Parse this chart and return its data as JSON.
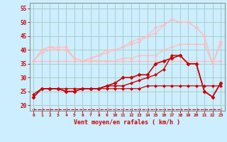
{
  "background_color": "#cceeff",
  "grid_color": "#aacccc",
  "xlabel": "Vent moyen/en rafales ( km/h )",
  "xlabel_color": "#cc0000",
  "tick_color": "#cc0000",
  "xlim": [
    -0.5,
    23.5
  ],
  "ylim": [
    18,
    57
  ],
  "yticks": [
    20,
    25,
    30,
    35,
    40,
    45,
    50,
    55
  ],
  "xticks": [
    0,
    1,
    2,
    3,
    4,
    5,
    6,
    7,
    8,
    9,
    10,
    11,
    12,
    13,
    14,
    15,
    16,
    17,
    18,
    19,
    20,
    21,
    22,
    23
  ],
  "lines": [
    {
      "x": [
        0,
        1,
        2,
        3,
        4,
        5,
        6,
        7,
        8,
        9,
        10,
        11,
        12,
        13,
        14,
        15,
        16,
        17,
        18,
        19,
        20,
        21,
        22,
        23
      ],
      "y": [
        36,
        36,
        36,
        36,
        36,
        36,
        36,
        36,
        36,
        36,
        36,
        36,
        36,
        36,
        36,
        36,
        36,
        36,
        36,
        36,
        36,
        36,
        36,
        36
      ],
      "color": "#ffbbbb",
      "lw": 0.8,
      "marker": "D",
      "ms": 2.0,
      "zorder": 2
    },
    {
      "x": [
        0,
        1,
        2,
        3,
        4,
        5,
        6,
        7,
        8,
        9,
        10,
        11,
        12,
        13,
        14,
        15,
        16,
        17,
        18,
        19,
        20,
        21,
        22,
        23
      ],
      "y": [
        36,
        39,
        40,
        40,
        40,
        37,
        36,
        36,
        36,
        36,
        36,
        37,
        37,
        38,
        38,
        38,
        40,
        41,
        42,
        42,
        42,
        42,
        35,
        42
      ],
      "color": "#ffbbbb",
      "lw": 0.8,
      "marker": "D",
      "ms": 2.0,
      "zorder": 2
    },
    {
      "x": [
        0,
        1,
        2,
        3,
        4,
        5,
        6,
        7,
        8,
        9,
        10,
        11,
        12,
        13,
        14,
        15,
        16,
        17,
        18,
        19,
        20,
        21,
        22,
        23
      ],
      "y": [
        36,
        40,
        41,
        40,
        40,
        37,
        36,
        37,
        38,
        39,
        40,
        41,
        42,
        43,
        45,
        48,
        49,
        51,
        50,
        50,
        48,
        45,
        35,
        43
      ],
      "color": "#ffbbbb",
      "lw": 0.8,
      "marker": "D",
      "ms": 2.0,
      "zorder": 2
    },
    {
      "x": [
        0,
        1,
        2,
        3,
        4,
        5,
        6,
        7,
        8,
        9,
        10,
        11,
        12,
        13,
        14,
        15,
        16,
        17,
        18,
        19,
        20,
        21,
        22,
        23
      ],
      "y": [
        36,
        40,
        41,
        41,
        41,
        37,
        36,
        37,
        38,
        40,
        40,
        41,
        43,
        44,
        45,
        46,
        49,
        51,
        50,
        50,
        48,
        45,
        35,
        43
      ],
      "color": "#ffbbbb",
      "lw": 0.8,
      "marker": "D",
      "ms": 2.0,
      "zorder": 2
    },
    {
      "x": [
        0,
        1,
        2,
        3,
        4,
        5,
        6,
        7,
        8,
        9,
        10,
        11,
        12,
        13,
        14,
        15,
        16,
        17,
        18,
        19,
        20,
        21,
        22,
        23
      ],
      "y": [
        24,
        26,
        26,
        26,
        26,
        26,
        26,
        26,
        26,
        26,
        26,
        26,
        26,
        26,
        27,
        27,
        27,
        27,
        27,
        27,
        27,
        27,
        27,
        27
      ],
      "color": "#cc0000",
      "lw": 0.9,
      "marker": "D",
      "ms": 2.0,
      "zorder": 3
    },
    {
      "x": [
        0,
        1,
        2,
        3,
        4,
        5,
        6,
        7,
        8,
        9,
        10,
        11,
        12,
        13,
        14,
        15,
        16,
        17,
        18,
        19,
        20,
        21,
        22,
        23
      ],
      "y": [
        23,
        26,
        26,
        26,
        25,
        25,
        26,
        26,
        26,
        27,
        27,
        27,
        28,
        29,
        30,
        31,
        33,
        38,
        38,
        35,
        35,
        25,
        23,
        28
      ],
      "color": "#cc0000",
      "lw": 1.0,
      "marker": "D",
      "ms": 2.0,
      "zorder": 3
    },
    {
      "x": [
        0,
        1,
        2,
        3,
        4,
        5,
        6,
        7,
        8,
        9,
        10,
        11,
        12,
        13,
        14,
        15,
        16,
        17,
        18,
        19,
        20,
        21,
        22,
        23
      ],
      "y": [
        23,
        26,
        26,
        26,
        25,
        25,
        26,
        26,
        26,
        27,
        28,
        30,
        30,
        31,
        31,
        35,
        36,
        37,
        38,
        35,
        35,
        25,
        23,
        28
      ],
      "color": "#cc0000",
      "lw": 1.2,
      "marker": "D",
      "ms": 2.5,
      "zorder": 4
    },
    {
      "x": [
        0,
        1,
        2,
        3,
        4,
        5,
        6,
        7,
        8,
        9,
        10,
        11,
        12,
        13,
        14,
        15,
        16,
        17,
        18,
        19,
        20,
        21,
        22,
        23
      ],
      "y": [
        18.5,
        18.5,
        18.5,
        18.5,
        18.5,
        18.5,
        18.5,
        18.5,
        18.5,
        18.5,
        18.5,
        18.5,
        18.5,
        18.5,
        18.5,
        18.5,
        18.5,
        18.5,
        18.5,
        18.5,
        18.5,
        18.5,
        18.5,
        18.5
      ],
      "color": "#cc0000",
      "lw": 0.8,
      "marker": "3",
      "ms": 3.5,
      "ls": "--",
      "zorder": 1
    }
  ]
}
